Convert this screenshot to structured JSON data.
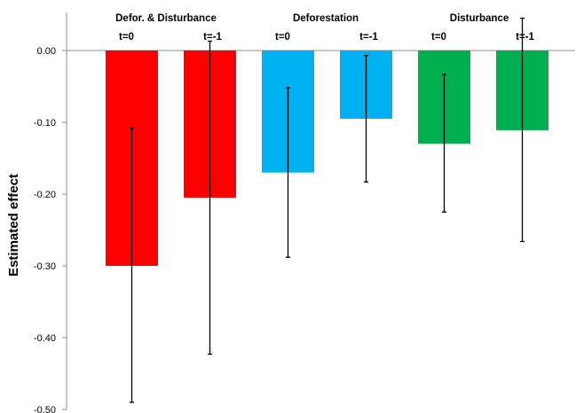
{
  "chart_data": {
    "type": "bar",
    "ylabel": "Estimated effect",
    "ylim": [
      -0.5,
      0.05
    ],
    "yticks": [
      {
        "value": 0.0,
        "label": "0.00"
      },
      {
        "value": -0.1,
        "label": "-0.10"
      },
      {
        "value": -0.2,
        "label": "-0.20"
      },
      {
        "value": -0.3,
        "label": "-0.30"
      },
      {
        "value": -0.4,
        "label": "-0.40"
      },
      {
        "value": -0.5,
        "label": "-0.50"
      }
    ],
    "groups": [
      {
        "label": "Defor. & Disturbance",
        "color": "#ff0000"
      },
      {
        "label": "Deforestation",
        "color": "#00b0f0"
      },
      {
        "label": "Disturbance",
        "color": "#00b050"
      }
    ],
    "bars": [
      {
        "group": 0,
        "label": "t=0",
        "value": -0.3,
        "err_low": -0.49,
        "err_high": -0.108
      },
      {
        "group": 0,
        "label": "t=-1",
        "value": -0.205,
        "err_low": -0.423,
        "err_high": 0.013
      },
      {
        "group": 1,
        "label": "t=0",
        "value": -0.17,
        "err_low": -0.288,
        "err_high": -0.052
      },
      {
        "group": 1,
        "label": "t=-1",
        "value": -0.095,
        "err_low": -0.183,
        "err_high": -0.007
      },
      {
        "group": 2,
        "label": "t=0",
        "value": -0.13,
        "err_low": -0.225,
        "err_high": -0.033
      },
      {
        "group": 2,
        "label": "t=-1",
        "value": -0.111,
        "err_low": -0.266,
        "err_high": 0.045
      }
    ],
    "grid": false,
    "legend": "none"
  }
}
